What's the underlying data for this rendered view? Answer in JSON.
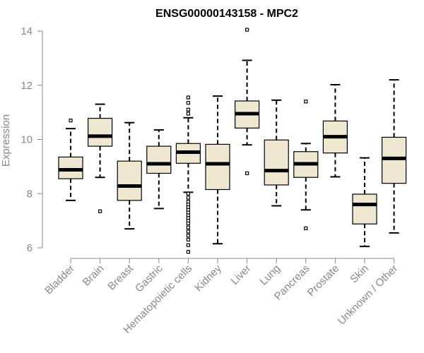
{
  "chart_data": {
    "type": "boxplot",
    "title": "ENSG00000143158 - MPC2",
    "xlabel": "",
    "ylabel": "Expression",
    "ylim": [
      6,
      14
    ],
    "yticks": [
      6,
      8,
      10,
      12,
      14
    ],
    "grid": false,
    "colors": {
      "box_fill": "#efe8d0",
      "box_stroke": "#000000",
      "axis": "#888888"
    },
    "categories": [
      "Bladder",
      "Brain",
      "Breast",
      "Gastric",
      "Hematopoietic cells",
      "Kidney",
      "Liver",
      "Lung",
      "Pancreas",
      "Prostate",
      "Skin",
      "Unknown / Other"
    ],
    "boxes": [
      {
        "category": "Bladder",
        "whisker_low": 7.75,
        "q1": 8.55,
        "median": 8.88,
        "q3": 9.35,
        "whisker_high": 10.4,
        "outliers": [
          10.7
        ]
      },
      {
        "category": "Brain",
        "whisker_low": 8.6,
        "q1": 9.75,
        "median": 10.12,
        "q3": 10.78,
        "whisker_high": 11.3,
        "outliers": [
          7.35
        ]
      },
      {
        "category": "Breast",
        "whisker_low": 6.7,
        "q1": 7.75,
        "median": 8.28,
        "q3": 9.2,
        "whisker_high": 10.62,
        "outliers": []
      },
      {
        "category": "Gastric",
        "whisker_low": 7.45,
        "q1": 8.75,
        "median": 9.1,
        "q3": 9.75,
        "whisker_high": 10.35,
        "outliers": []
      },
      {
        "category": "Hematopoietic cells",
        "whisker_low": 8.05,
        "q1": 9.12,
        "median": 9.53,
        "q3": 9.85,
        "whisker_high": 10.8,
        "outliers": [
          11.55,
          11.35,
          11.1,
          10.95,
          8.0,
          7.85,
          7.7,
          7.6,
          7.5,
          7.4,
          7.3,
          7.2,
          7.1,
          7.0,
          6.9,
          6.75,
          6.6,
          6.45,
          6.3,
          6.1,
          5.85
        ]
      },
      {
        "category": "Kidney",
        "whisker_low": 6.15,
        "q1": 8.15,
        "median": 9.1,
        "q3": 9.82,
        "whisker_high": 11.6,
        "outliers": []
      },
      {
        "category": "Liver",
        "whisker_low": 9.8,
        "q1": 10.42,
        "median": 10.95,
        "q3": 11.42,
        "whisker_high": 12.92,
        "outliers": [
          14.05,
          8.75
        ]
      },
      {
        "category": "Lung",
        "whisker_low": 7.55,
        "q1": 8.32,
        "median": 8.85,
        "q3": 9.98,
        "whisker_high": 11.45,
        "outliers": []
      },
      {
        "category": "Pancreas",
        "whisker_low": 7.4,
        "q1": 8.6,
        "median": 9.1,
        "q3": 9.55,
        "whisker_high": 9.85,
        "outliers": [
          11.4,
          6.72
        ]
      },
      {
        "category": "Prostate",
        "whisker_low": 8.62,
        "q1": 9.5,
        "median": 10.1,
        "q3": 10.68,
        "whisker_high": 12.02,
        "outliers": []
      },
      {
        "category": "Skin",
        "whisker_low": 6.05,
        "q1": 6.88,
        "median": 7.6,
        "q3": 7.98,
        "whisker_high": 9.32,
        "outliers": []
      },
      {
        "category": "Unknown / Other",
        "whisker_low": 6.55,
        "q1": 8.38,
        "median": 9.3,
        "q3": 10.08,
        "whisker_high": 12.2,
        "outliers": []
      }
    ]
  }
}
